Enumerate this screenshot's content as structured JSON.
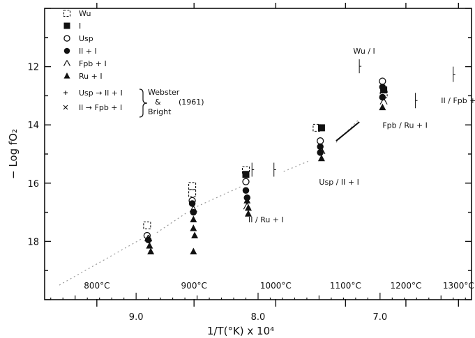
{
  "chart_data": {
    "type": "scatter",
    "title": "",
    "xlabel": "1/T(°K) x 10⁴",
    "ylabel": "− Log fO₂",
    "x_reversed": true,
    "xlim": [
      97.5,
      62.5
    ],
    "ylim": [
      10,
      20
    ],
    "x_ticks": [
      90,
      80,
      70
    ],
    "x_tick_labels": [
      "9.0",
      "8.0",
      "7.0"
    ],
    "y_ticks": [
      12,
      14,
      16,
      18
    ],
    "y_tick_labels": [
      "12",
      "14",
      "16",
      "18"
    ],
    "temperature_axis": [
      {
        "label": "800°C",
        "x": 93.22
      },
      {
        "label": "900°C",
        "x": 85.25
      },
      {
        "label": "1000°C",
        "x": 78.55
      },
      {
        "label": "1100°C",
        "x": 72.83
      },
      {
        "label": "1200°C",
        "x": 67.88
      },
      {
        "label": "1300°C",
        "x": 63.57
      }
    ],
    "grid": false,
    "legend_position": "top-left",
    "legend": [
      {
        "symbol": "open-square",
        "label": "Wu"
      },
      {
        "symbol": "filled-square",
        "label": "I"
      },
      {
        "symbol": "open-circle",
        "label": "Usp"
      },
      {
        "symbol": "filled-circle",
        "label": "Il + I"
      },
      {
        "symbol": "open-triangle",
        "label": "Fpb + I"
      },
      {
        "symbol": "filled-triangle",
        "label": "Ru + I"
      },
      {
        "symbol": "small-plus",
        "label": "Usp → Il + I"
      },
      {
        "symbol": "small-cross",
        "label": "Il → Fpb + I"
      }
    ],
    "legend_bracket": [
      "Webster",
      "&",
      "Bright",
      "(1961)"
    ],
    "series": [
      {
        "name": "Wu",
        "symbol": "open-square",
        "points": [
          [
            89.1,
            17.45
          ],
          [
            85.4,
            16.1
          ],
          [
            85.4,
            16.35
          ],
          [
            81.0,
            15.55
          ],
          [
            75.2,
            14.1
          ],
          [
            69.7,
            12.95
          ]
        ]
      },
      {
        "name": "I",
        "symbol": "filled-square",
        "points": [
          [
            81.0,
            15.7
          ],
          [
            74.8,
            14.1
          ],
          [
            69.7,
            12.8
          ]
        ]
      },
      {
        "name": "Usp",
        "symbol": "open-circle",
        "points": [
          [
            89.1,
            17.8
          ],
          [
            85.4,
            16.6
          ],
          [
            81.0,
            15.95
          ],
          [
            74.9,
            14.55
          ],
          [
            69.8,
            12.5
          ]
        ]
      },
      {
        "name": "Il + I",
        "symbol": "filled-circle",
        "points": [
          [
            89.0,
            17.95
          ],
          [
            85.4,
            16.7
          ],
          [
            85.3,
            17.0
          ],
          [
            81.0,
            16.25
          ],
          [
            80.9,
            16.5
          ],
          [
            74.9,
            14.75
          ],
          [
            74.9,
            14.95
          ],
          [
            69.8,
            12.7
          ],
          [
            69.8,
            13.05
          ]
        ]
      },
      {
        "name": "Fpb + I",
        "symbol": "open-triangle",
        "points": [
          [
            89.0,
            17.9
          ],
          [
            85.3,
            16.9
          ],
          [
            80.9,
            16.8
          ],
          [
            74.8,
            14.9
          ],
          [
            69.7,
            13.2
          ]
        ]
      },
      {
        "name": "Ru + I",
        "symbol": "filled-triangle",
        "points": [
          [
            88.9,
            18.15
          ],
          [
            88.8,
            18.35
          ],
          [
            85.3,
            17.25
          ],
          [
            85.3,
            17.55
          ],
          [
            85.2,
            17.8
          ],
          [
            85.3,
            18.35
          ],
          [
            80.9,
            16.6
          ],
          [
            80.8,
            16.85
          ],
          [
            80.8,
            17.05
          ],
          [
            74.8,
            15.15
          ],
          [
            69.8,
            13.4
          ]
        ]
      }
    ],
    "annotations": [
      {
        "text": "Wu / I",
        "x": 72.2,
        "y": 11.55
      },
      {
        "text": "II / Fpb + I",
        "x": 65.0,
        "y": 13.25
      },
      {
        "text": "Fpb / Ru + I",
        "x": 69.8,
        "y": 14.1
      },
      {
        "text": "Usp / II + I",
        "x": 75.0,
        "y": 16.05
      },
      {
        "text": "II / Ru + I",
        "x": 80.8,
        "y": 17.35
      }
    ]
  }
}
